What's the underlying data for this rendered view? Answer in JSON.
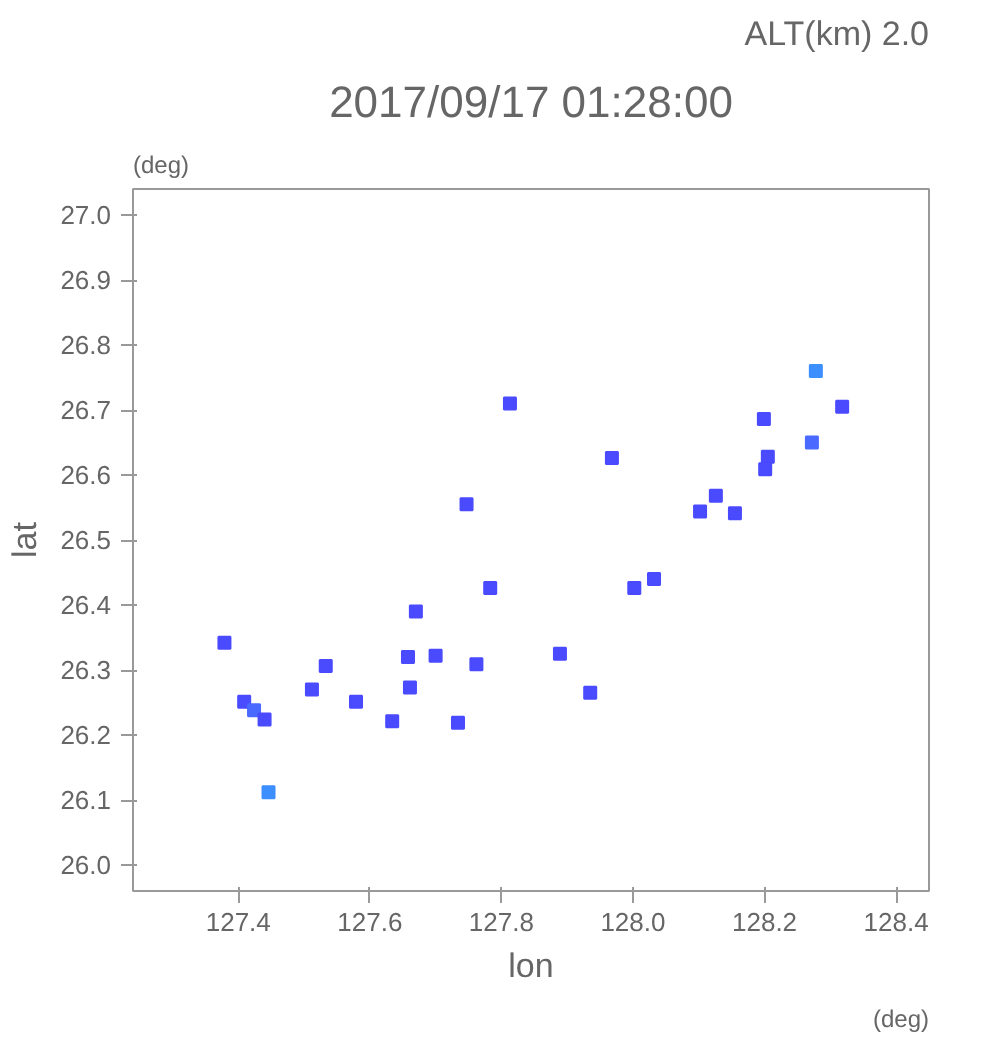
{
  "chart_data": {
    "type": "scatter",
    "title": "2017/09/17 01:28:00",
    "xlabel": "lon",
    "ylabel": "lat",
    "annotations": [
      "ALT(km) 2.0",
      "(deg)",
      "(deg)"
    ],
    "marker": "square",
    "grid": false,
    "xlim": [
      127.24,
      128.45
    ],
    "ylim": [
      25.96,
      27.04
    ],
    "xticks": [
      {
        "value": 127.4,
        "label": "127.4"
      },
      {
        "value": 127.6,
        "label": "127.6"
      },
      {
        "value": 127.8,
        "label": "127.8"
      },
      {
        "value": 128.0,
        "label": "128.0"
      },
      {
        "value": 128.2,
        "label": "128.2"
      },
      {
        "value": 128.4,
        "label": "128.4"
      }
    ],
    "yticks": [
      {
        "value": 26.0,
        "label": "26.0"
      },
      {
        "value": 26.1,
        "label": "26.1"
      },
      {
        "value": 26.2,
        "label": "26.2"
      },
      {
        "value": 26.3,
        "label": "26.3"
      },
      {
        "value": 26.4,
        "label": "26.4"
      },
      {
        "value": 26.5,
        "label": "26.5"
      },
      {
        "value": 26.6,
        "label": "26.6"
      },
      {
        "value": 26.7,
        "label": "26.7"
      },
      {
        "value": 26.8,
        "label": "26.8"
      },
      {
        "value": 26.9,
        "label": "26.9"
      },
      {
        "value": 27.0,
        "label": "27.0"
      }
    ],
    "series": [
      {
        "x": [
          127.379,
          127.409,
          127.424,
          127.44,
          127.446,
          127.512,
          127.533,
          127.579,
          127.634,
          127.658,
          127.661,
          127.67,
          127.734,
          127.762,
          127.783,
          127.813,
          127.7,
          127.889,
          127.935,
          128.002,
          128.032,
          127.968,
          128.102,
          128.155,
          128.205,
          128.201,
          128.278,
          128.318,
          128.272,
          128.199,
          128.126,
          127.747
        ],
        "values": [
          26.342,
          26.251,
          26.238,
          26.224,
          26.112,
          26.27,
          26.306,
          26.251,
          26.221,
          26.32,
          26.273,
          26.39,
          26.219,
          26.309,
          26.426,
          26.71,
          26.322,
          26.325,
          26.265,
          26.426,
          26.44,
          26.626,
          26.544,
          26.541,
          26.628,
          26.609,
          26.76,
          26.705,
          26.65,
          26.686,
          26.568,
          26.555
        ],
        "colors": [
          "#4a4aff",
          "#4a4aff",
          "#4a6aff",
          "#4a4aff",
          "#3d8fff",
          "#4a4aff",
          "#4a4aff",
          "#4a4aff",
          "#4a4aff",
          "#4a4aff",
          "#4a4aff",
          "#4a4aff",
          "#4a4aff",
          "#4a4aff",
          "#4a4aff",
          "#4a4aff",
          "#4a4aff",
          "#4a4aff",
          "#4a4aff",
          "#4a4aff",
          "#4a4aff",
          "#4a4aff",
          "#4a4aff",
          "#4a4aff",
          "#4a4aff",
          "#4a4aff",
          "#3d8fff",
          "#4a4aff",
          "#4a6aff",
          "#4a4aff",
          "#4a4aff",
          "#4a4aff"
        ]
      }
    ]
  }
}
